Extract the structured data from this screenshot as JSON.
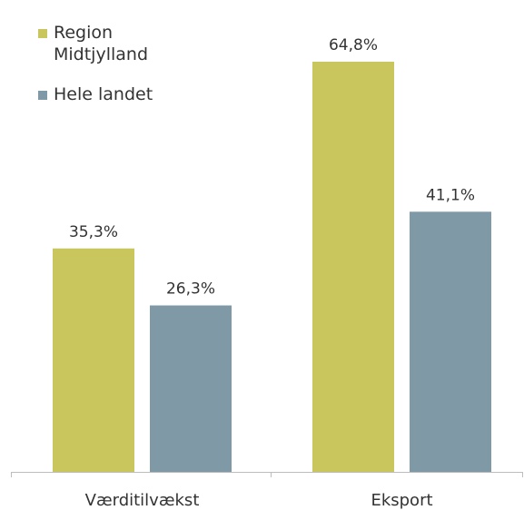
{
  "chart_data": {
    "type": "bar",
    "categories": [
      "Værditilvækst",
      "Eksport"
    ],
    "series": [
      {
        "name": "Region Midtjylland",
        "legend_lines": [
          "Region",
          "Midtjylland"
        ],
        "color": "#c8c65c",
        "values": [
          35.3,
          64.8
        ],
        "labels": [
          "35,3%",
          "64,8%"
        ]
      },
      {
        "name": "Hele landet",
        "legend_lines": [
          "Hele landet"
        ],
        "color": "#7f9aa6",
        "values": [
          26.3,
          41.1
        ],
        "labels": [
          "26,3%",
          "41,1%"
        ]
      }
    ],
    "ylim": [
      0,
      70
    ],
    "grid": false,
    "legend": "top-left",
    "axis_color": "#bdbdbd"
  }
}
